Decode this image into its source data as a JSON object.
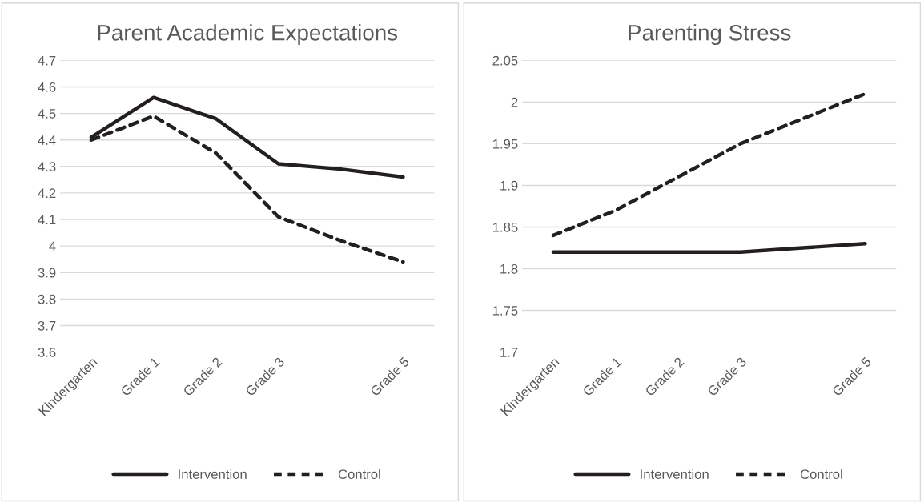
{
  "chart_data": [
    {
      "type": "line",
      "title": "Parent Academic Expectations",
      "categories": [
        "Kindergarten",
        "Grade 1",
        "Grade 2",
        "Grade 3",
        null,
        "Grade 5"
      ],
      "series": [
        {
          "name": "Intervention",
          "color": "#231f20",
          "line_style": "solid",
          "values": [
            4.41,
            4.56,
            4.48,
            4.31,
            4.29,
            4.26
          ]
        },
        {
          "name": "Control",
          "color": "#231f20",
          "line_style": "dashed",
          "values": [
            4.4,
            4.49,
            4.35,
            4.11,
            4.02,
            3.94
          ]
        }
      ],
      "ylim": [
        3.6,
        4.7
      ],
      "yticks": [
        3.6,
        3.7,
        3.8,
        3.9,
        {
          "value": 4,
          "label": "4"
        },
        4.1,
        4.2,
        4.3,
        4.4,
        4.5,
        4.6,
        4.7
      ],
      "grid": "y",
      "legend": "bottom"
    },
    {
      "type": "line",
      "title": "Parenting Stress",
      "categories": [
        "Kindergarten",
        "Grade 1",
        "Grade 2",
        "Grade 3",
        null,
        "Grade 5"
      ],
      "series": [
        {
          "name": "Intervention",
          "color": "#231f20",
          "line_style": "solid",
          "values": [
            1.82,
            1.82,
            1.82,
            1.82,
            1.825,
            1.83
          ]
        },
        {
          "name": "Control",
          "color": "#231f20",
          "line_style": "dashed",
          "values": [
            1.84,
            1.87,
            1.91,
            1.95,
            1.98,
            2.01
          ]
        }
      ],
      "ylim": [
        1.7,
        2.05
      ],
      "yticks": [
        1.7,
        1.75,
        1.8,
        1.85,
        1.9,
        1.95,
        {
          "value": 2,
          "label": "2"
        },
        2.05
      ],
      "grid": "y",
      "legend": "bottom"
    }
  ]
}
